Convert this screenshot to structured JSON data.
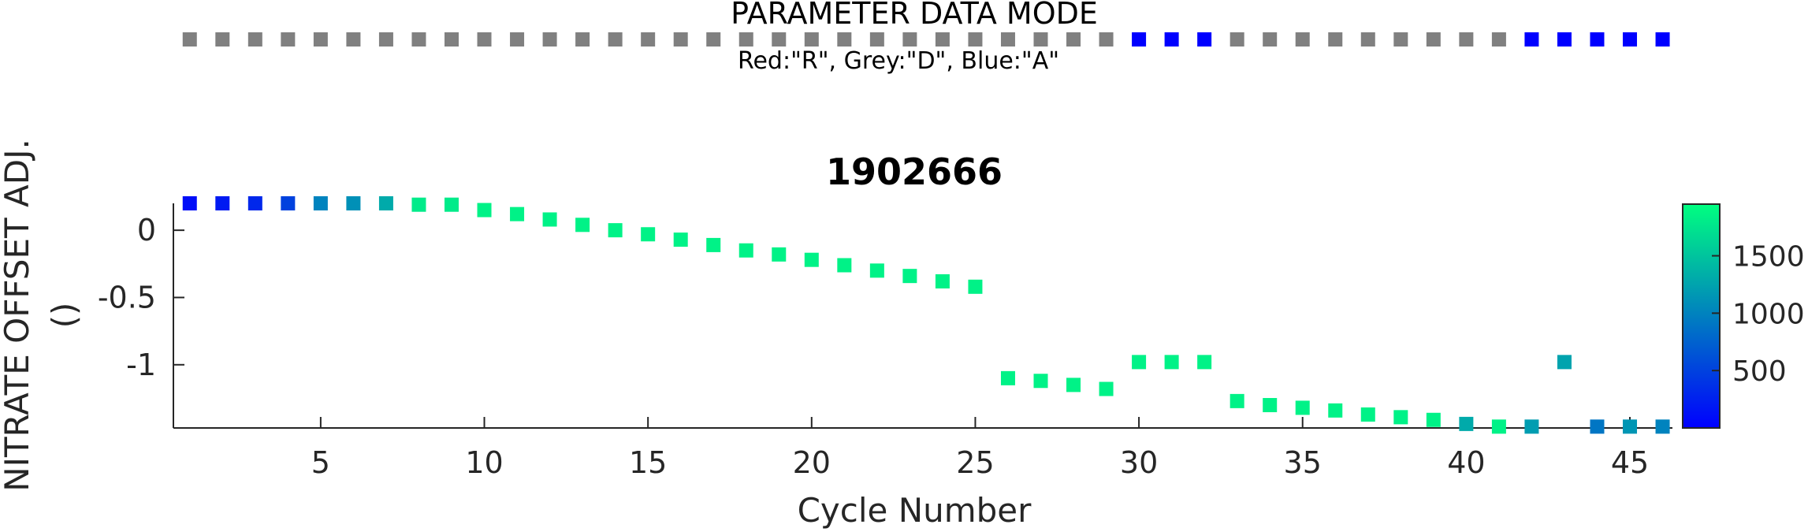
{
  "mode_strip": {
    "title": "PARAMETER DATA MODE",
    "legend": "Red:\"R\", Grey:\"D\", Blue:\"A\"",
    "cycles": [
      1,
      2,
      3,
      4,
      5,
      6,
      7,
      8,
      9,
      10,
      11,
      12,
      13,
      14,
      15,
      16,
      17,
      18,
      19,
      20,
      21,
      22,
      23,
      24,
      25,
      26,
      27,
      28,
      29,
      30,
      31,
      32,
      33,
      34,
      35,
      36,
      37,
      38,
      39,
      40,
      41,
      42,
      43,
      44,
      45,
      46
    ],
    "modes": [
      "D",
      "D",
      "D",
      "D",
      "D",
      "D",
      "D",
      "D",
      "D",
      "D",
      "D",
      "D",
      "D",
      "D",
      "D",
      "D",
      "D",
      "D",
      "D",
      "D",
      "D",
      "D",
      "D",
      "D",
      "D",
      "D",
      "D",
      "D",
      "D",
      "A",
      "A",
      "A",
      "D",
      "D",
      "D",
      "D",
      "D",
      "D",
      "D",
      "D",
      "D",
      "A",
      "A",
      "A",
      "A",
      "A"
    ],
    "mode_colors": {
      "R": "#ff0000",
      "D": "#808080",
      "A": "#0000ff"
    }
  },
  "chart_data": {
    "type": "scatter",
    "title": "1902666",
    "xlabel": "Cycle Number",
    "ylabel": "NITRATE OFFSET ADJ.",
    "ylabel_units": "()",
    "xlim": [
      0.5,
      46.3
    ],
    "ylim": [
      -1.47,
      0.2
    ],
    "xticks": [
      5,
      10,
      15,
      20,
      25,
      30,
      35,
      40,
      45
    ],
    "yticks": [
      0,
      -0.5,
      -1
    ],
    "ytick_labels": [
      "0",
      "-0.5",
      "-1"
    ],
    "grid": false,
    "colormap": "winter",
    "colorbar": {
      "min": 0,
      "max": 1950,
      "ticks": [
        500,
        1000,
        1500
      ]
    },
    "points": [
      {
        "x": 1,
        "y": 0.2,
        "c": 100
      },
      {
        "x": 2,
        "y": 0.2,
        "c": 200
      },
      {
        "x": 3,
        "y": 0.2,
        "c": 300
      },
      {
        "x": 4,
        "y": 0.2,
        "c": 500
      },
      {
        "x": 5,
        "y": 0.2,
        "c": 1000
      },
      {
        "x": 6,
        "y": 0.2,
        "c": 1100
      },
      {
        "x": 7,
        "y": 0.2,
        "c": 1300
      },
      {
        "x": 8,
        "y": 0.19,
        "c": 1800
      },
      {
        "x": 9,
        "y": 0.19,
        "c": 1800
      },
      {
        "x": 10,
        "y": 0.15,
        "c": 1850
      },
      {
        "x": 11,
        "y": 0.12,
        "c": 1850
      },
      {
        "x": 12,
        "y": 0.08,
        "c": 1850
      },
      {
        "x": 13,
        "y": 0.04,
        "c": 1850
      },
      {
        "x": 14,
        "y": 0.0,
        "c": 1850
      },
      {
        "x": 15,
        "y": -0.03,
        "c": 1850
      },
      {
        "x": 16,
        "y": -0.07,
        "c": 1850
      },
      {
        "x": 17,
        "y": -0.11,
        "c": 1850
      },
      {
        "x": 18,
        "y": -0.15,
        "c": 1850
      },
      {
        "x": 19,
        "y": -0.18,
        "c": 1850
      },
      {
        "x": 20,
        "y": -0.22,
        "c": 1850
      },
      {
        "x": 21,
        "y": -0.26,
        "c": 1850
      },
      {
        "x": 22,
        "y": -0.3,
        "c": 1850
      },
      {
        "x": 23,
        "y": -0.34,
        "c": 1850
      },
      {
        "x": 24,
        "y": -0.38,
        "c": 1850
      },
      {
        "x": 25,
        "y": -0.42,
        "c": 1850
      },
      {
        "x": 26,
        "y": -1.1,
        "c": 1850
      },
      {
        "x": 27,
        "y": -1.12,
        "c": 1850
      },
      {
        "x": 28,
        "y": -1.15,
        "c": 1850
      },
      {
        "x": 29,
        "y": -1.18,
        "c": 1850
      },
      {
        "x": 30,
        "y": -0.98,
        "c": 1850
      },
      {
        "x": 31,
        "y": -0.98,
        "c": 1850
      },
      {
        "x": 32,
        "y": -0.98,
        "c": 1850
      },
      {
        "x": 33,
        "y": -1.27,
        "c": 1850
      },
      {
        "x": 34,
        "y": -1.3,
        "c": 1850
      },
      {
        "x": 35,
        "y": -1.32,
        "c": 1850
      },
      {
        "x": 36,
        "y": -1.34,
        "c": 1850
      },
      {
        "x": 37,
        "y": -1.37,
        "c": 1850
      },
      {
        "x": 38,
        "y": -1.39,
        "c": 1850
      },
      {
        "x": 39,
        "y": -1.41,
        "c": 1850
      },
      {
        "x": 40,
        "y": -1.44,
        "c": 1300
      },
      {
        "x": 41,
        "y": -1.46,
        "c": 1850
      },
      {
        "x": 42,
        "y": -1.46,
        "c": 1200
      },
      {
        "x": 43,
        "y": -0.98,
        "c": 1250
      },
      {
        "x": 44,
        "y": -1.46,
        "c": 900
      },
      {
        "x": 45,
        "y": -1.46,
        "c": 1150
      },
      {
        "x": 46,
        "y": -1.46,
        "c": 1000
      }
    ]
  }
}
